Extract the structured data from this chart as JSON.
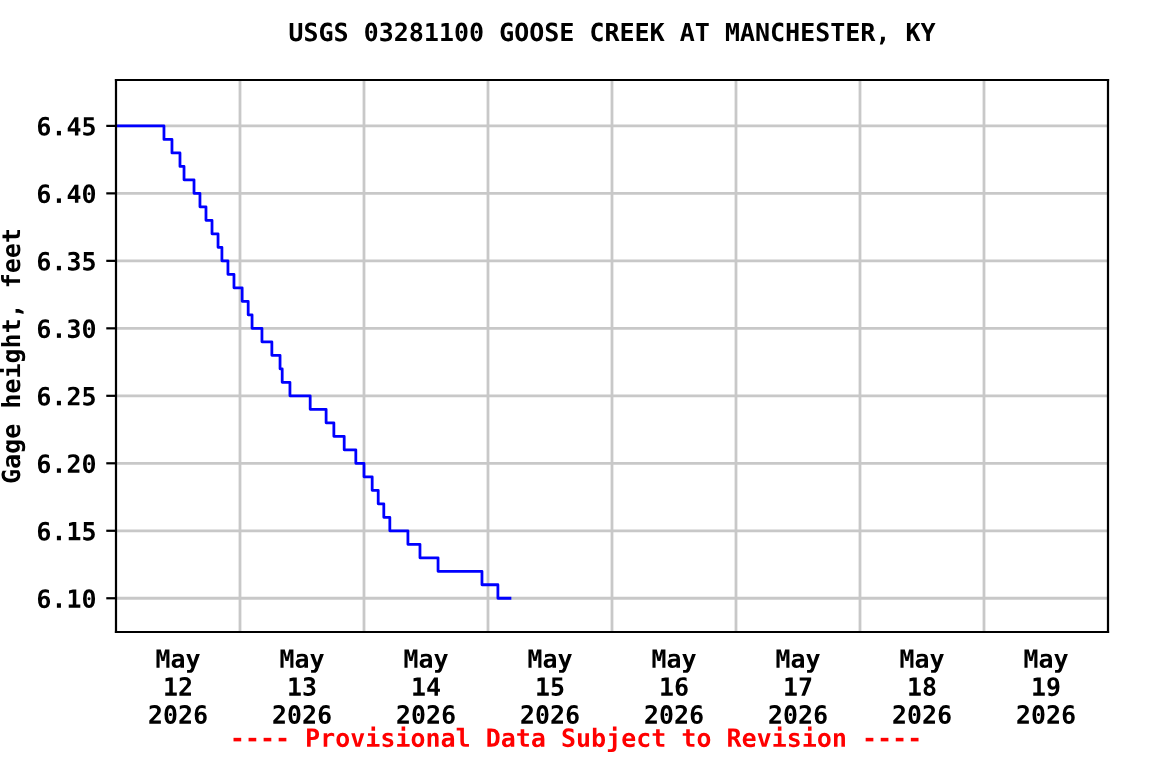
{
  "chart_data": {
    "type": "step",
    "title": "USGS 03281100 GOOSE CREEK AT MANCHESTER, KY",
    "ylabel": "Gage height, feet",
    "x": [
      "2026-05-12T00:00",
      "2026-05-12T09:17",
      "2026-05-12T10:50",
      "2026-05-12T12:23",
      "2026-05-12T13:10",
      "2026-05-12T15:06",
      "2026-05-12T16:15",
      "2026-05-12T17:25",
      "2026-05-12T18:35",
      "2026-05-12T19:45",
      "2026-05-12T20:30",
      "2026-05-12T21:40",
      "2026-05-12T22:50",
      "2026-05-13T00:25",
      "2026-05-13T01:35",
      "2026-05-13T02:20",
      "2026-05-13T04:15",
      "2026-05-13T06:10",
      "2026-05-13T07:45",
      "2026-05-13T08:10",
      "2026-05-13T09:40",
      "2026-05-13T13:35",
      "2026-05-13T16:40",
      "2026-05-13T18:10",
      "2026-05-13T20:10",
      "2026-05-13T22:25",
      "2026-05-14T00:00",
      "2026-05-14T01:35",
      "2026-05-14T02:45",
      "2026-05-14T03:50",
      "2026-05-14T05:00",
      "2026-05-14T08:30",
      "2026-05-14T10:50",
      "2026-05-14T14:20",
      "2026-05-14T22:50",
      "2026-05-15T01:55",
      "2026-05-15T04:15"
    ],
    "series": [
      {
        "color": "#0000ff",
        "values": [
          6.45,
          6.44,
          6.43,
          6.42,
          6.41,
          6.4,
          6.39,
          6.38,
          6.37,
          6.36,
          6.35,
          6.34,
          6.33,
          6.32,
          6.31,
          6.3,
          6.29,
          6.28,
          6.27,
          6.26,
          6.25,
          6.24,
          6.23,
          6.22,
          6.21,
          6.2,
          6.19,
          6.18,
          6.17,
          6.16,
          6.15,
          6.14,
          6.13,
          6.12,
          6.11,
          6.1,
          6.1
        ]
      }
    ],
    "xlim": [
      "2026-05-12T00:00",
      "2026-05-20T00:00"
    ],
    "xticks": [
      {
        "value": "2026-05-12T12:00",
        "label": "May\n12\n2026"
      },
      {
        "value": "2026-05-13T12:00",
        "label": "May\n13\n2026"
      },
      {
        "value": "2026-05-14T12:00",
        "label": "May\n14\n2026"
      },
      {
        "value": "2026-05-15T12:00",
        "label": "May\n15\n2026"
      },
      {
        "value": "2026-05-16T12:00",
        "label": "May\n16\n2026"
      },
      {
        "value": "2026-05-17T12:00",
        "label": "May\n17\n2026"
      },
      {
        "value": "2026-05-18T12:00",
        "label": "May\n18\n2026"
      },
      {
        "value": "2026-05-19T12:00",
        "label": "May\n19\n2026"
      }
    ],
    "ylim": [
      6.075,
      6.484
    ],
    "yticks": [
      {
        "value": 6.1,
        "label": "6.10"
      },
      6.15,
      {
        "value": 6.2,
        "label": "6.20"
      },
      6.25,
      {
        "value": 6.3,
        "label": "6.30"
      },
      6.35,
      {
        "value": 6.4,
        "label": "6.40"
      },
      6.45
    ],
    "grid": true,
    "annotations": [
      "---- Provisional Data Subject to Revision ----"
    ]
  }
}
